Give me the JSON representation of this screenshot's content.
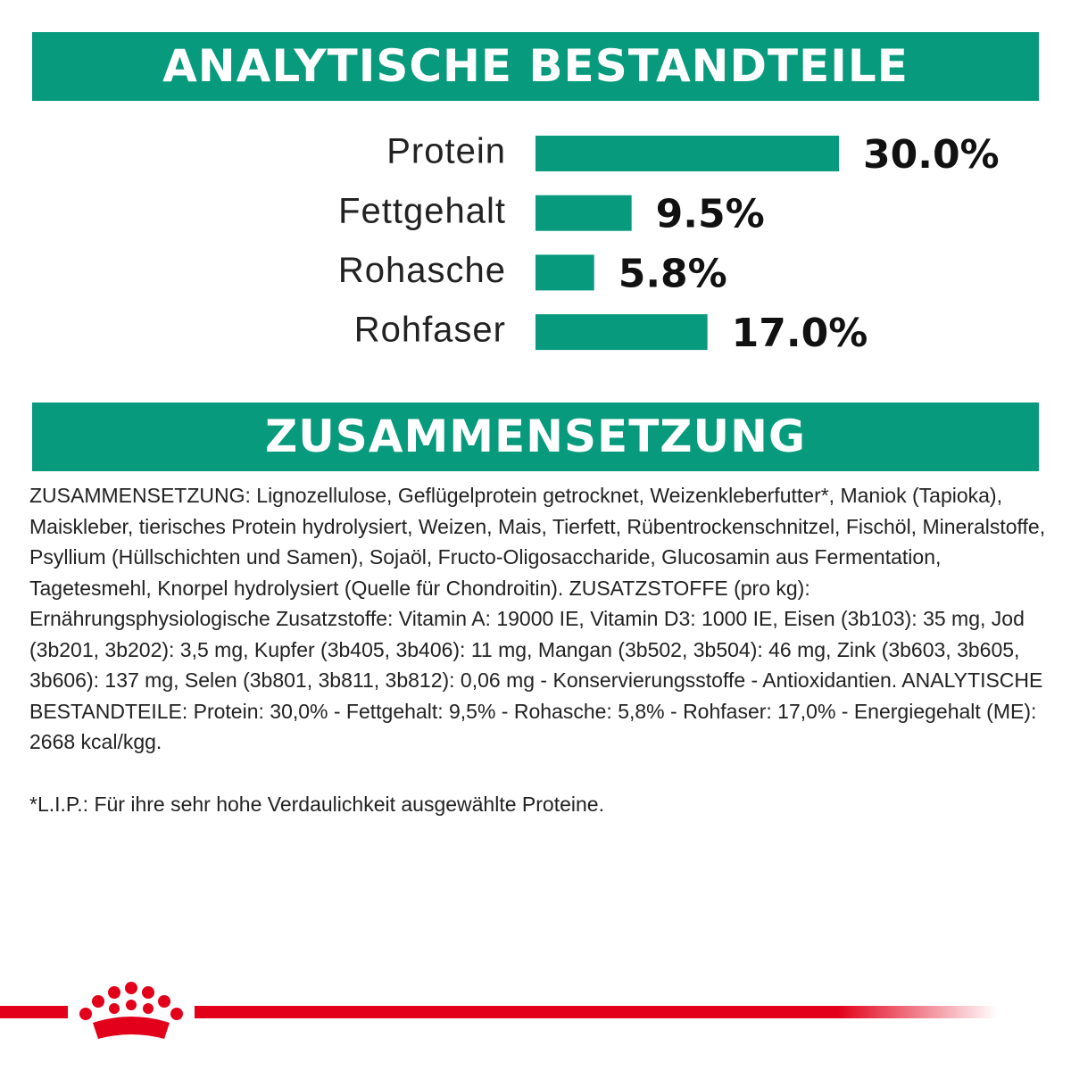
{
  "chart_data": {
    "type": "bar",
    "orientation": "horizontal",
    "title": "ANALYTISCHE BESTANDTEILE",
    "categories": [
      "Protein",
      "Fettgehalt",
      "Rohasche",
      "Rohfaser"
    ],
    "values": [
      30,
      9.5,
      5.8,
      17
    ],
    "value_labels": [
      "30.0%",
      "9.5%",
      "5.8%",
      "17.0%"
    ],
    "color": "#079a7c",
    "xlim": [
      0,
      30
    ]
  },
  "composition": {
    "title": "ZUSAMMENSETZUNG",
    "text": "ZUSAMMENSETZUNG: Lignozellulose, Geflügelprotein getrocknet, Weizenkleberfutter*, Maniok (Tapioka), Maiskleber, tierisches Protein hydrolysiert, Weizen, Mais, Tierfett, Rübentrockenschnitzel, Fischöl, Mineralstoffe, Psyllium (Hüllschichten und Samen), Sojaöl, Fructo-Oligosaccharide, Glucosamin aus Fermentation, Tagetesmehl, Knorpel hydrolysiert (Quelle für Chondroitin). ZUSATZSTOFFE (pro kg): Ernährungsphysiologische Zusatzstoffe: Vitamin A: 19000 IE, Vitamin D3: 1000 IE, Eisen (3b103): 35 mg, Jod (3b201, 3b202): 3,5 mg, Kupfer (3b405, 3b406): 11 mg, Mangan (3b502, 3b504): 46 mg, Zink (3b603, 3b605, 3b606): 137 mg, Selen (3b801, 3b811, 3b812): 0,06 mg - Konservierungsstoffe - Antioxidantien. ANALYTISCHE BESTANDTEILE: Protein: 30,0% - Fettgehalt: 9,5% - Rohasche: 5,8% - Rohfaser: 17,0% - Energiegehalt (ME): 2668 kcal/kgg.",
    "footnote": "*L.I.P.: Für ihre sehr hohe Verdaulichkeit ausgewählte Proteine."
  }
}
